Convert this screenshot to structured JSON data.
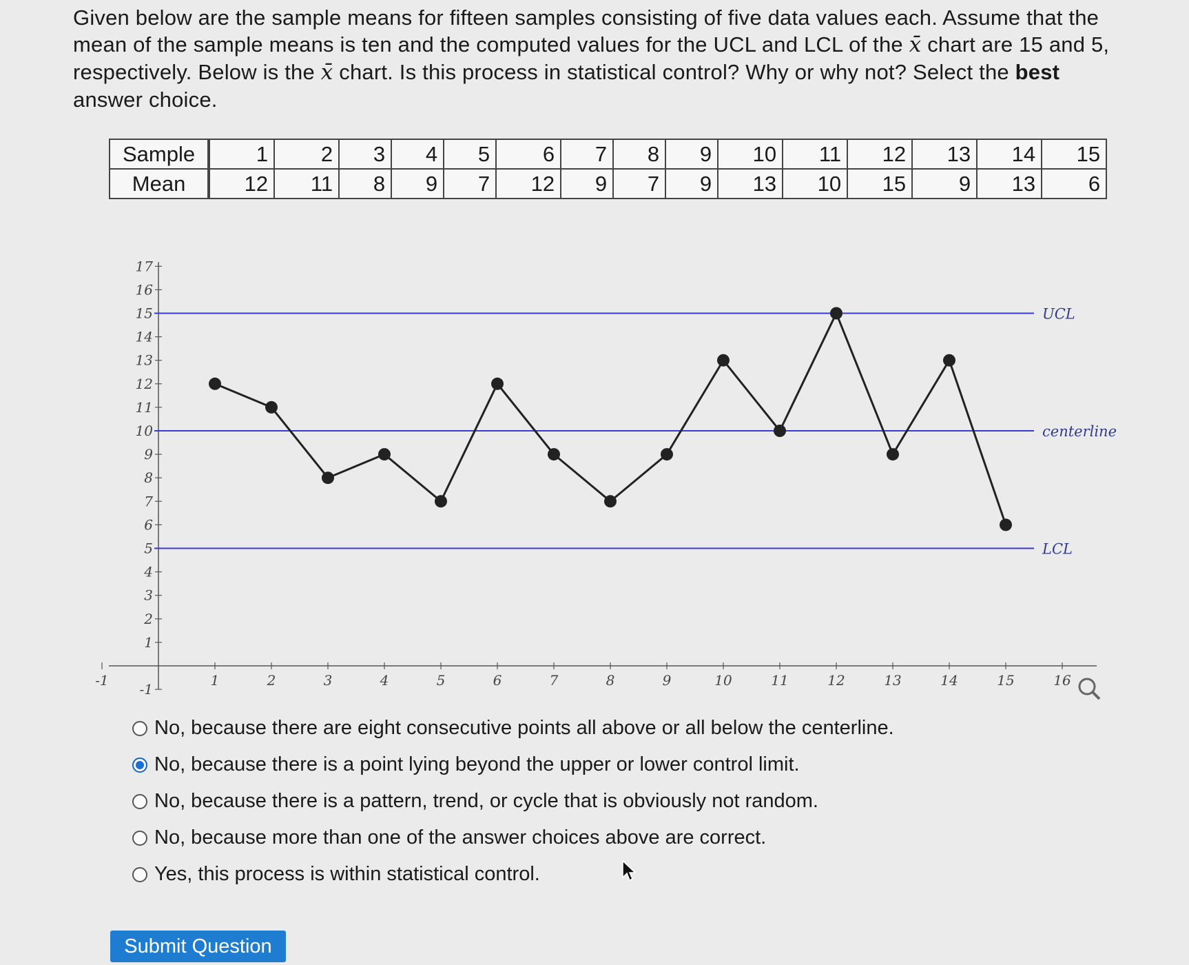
{
  "question": {
    "part1": "Given below are the sample means for fifteen samples consisting of five data values each. Assume that the mean of the sample means is ten and the computed values for the UCL and LCL of the ",
    "xbar_symbol": "x̄",
    "part2": " chart are 15 and 5, respectively. Below is the ",
    "part3": " chart. Is this process in statistical control? Why or why not? Select the ",
    "best": "best",
    "part4": " answer choice."
  },
  "table": {
    "sample_label": "Sample",
    "mean_label": "Mean",
    "samples": [
      "1",
      "2",
      "3",
      "4",
      "5",
      "6",
      "7",
      "8",
      "9",
      "10",
      "11",
      "12",
      "13",
      "14",
      "15"
    ],
    "means": [
      "12",
      "11",
      "8",
      "9",
      "7",
      "12",
      "9",
      "7",
      "9",
      "13",
      "10",
      "15",
      "9",
      "13",
      "6"
    ]
  },
  "chart_data": {
    "type": "line",
    "x": [
      1,
      2,
      3,
      4,
      5,
      6,
      7,
      8,
      9,
      10,
      11,
      12,
      13,
      14,
      15
    ],
    "y": [
      12,
      11,
      8,
      9,
      7,
      12,
      9,
      7,
      9,
      13,
      10,
      15,
      9,
      13,
      6
    ],
    "xlim": [
      -1,
      16
    ],
    "ylim": [
      -1,
      17
    ],
    "x_ticks": [
      "-1",
      "1",
      "2",
      "3",
      "4",
      "5",
      "6",
      "7",
      "8",
      "9",
      "10",
      "11",
      "12",
      "13",
      "14",
      "15",
      "16"
    ],
    "y_ticks": [
      "-1",
      "1",
      "2",
      "3",
      "4",
      "5",
      "6",
      "7",
      "8",
      "9",
      "10",
      "11",
      "12",
      "13",
      "14",
      "15",
      "16",
      "17"
    ],
    "control_lines": [
      {
        "label": "UCL",
        "value": 15
      },
      {
        "label": "centerline",
        "value": 10
      },
      {
        "label": "LCL",
        "value": 5
      }
    ],
    "line_color": "#3a3ad0",
    "series_color": "#222222"
  },
  "options": [
    {
      "label": "No, because there are eight consecutive points all above or all below the centerline.",
      "checked": false
    },
    {
      "label": "No, because there is a point lying beyond the upper or lower control limit.",
      "checked": true
    },
    {
      "label": "No, because there is a pattern, trend, or cycle that is obviously not random.",
      "checked": false
    },
    {
      "label": "No, because more than one of the answer choices above are correct.",
      "checked": false
    },
    {
      "label": "Yes, this process is within statistical control.",
      "checked": false
    }
  ],
  "submit_label": "Submit Question",
  "zoom_icon": "magnifier-icon"
}
